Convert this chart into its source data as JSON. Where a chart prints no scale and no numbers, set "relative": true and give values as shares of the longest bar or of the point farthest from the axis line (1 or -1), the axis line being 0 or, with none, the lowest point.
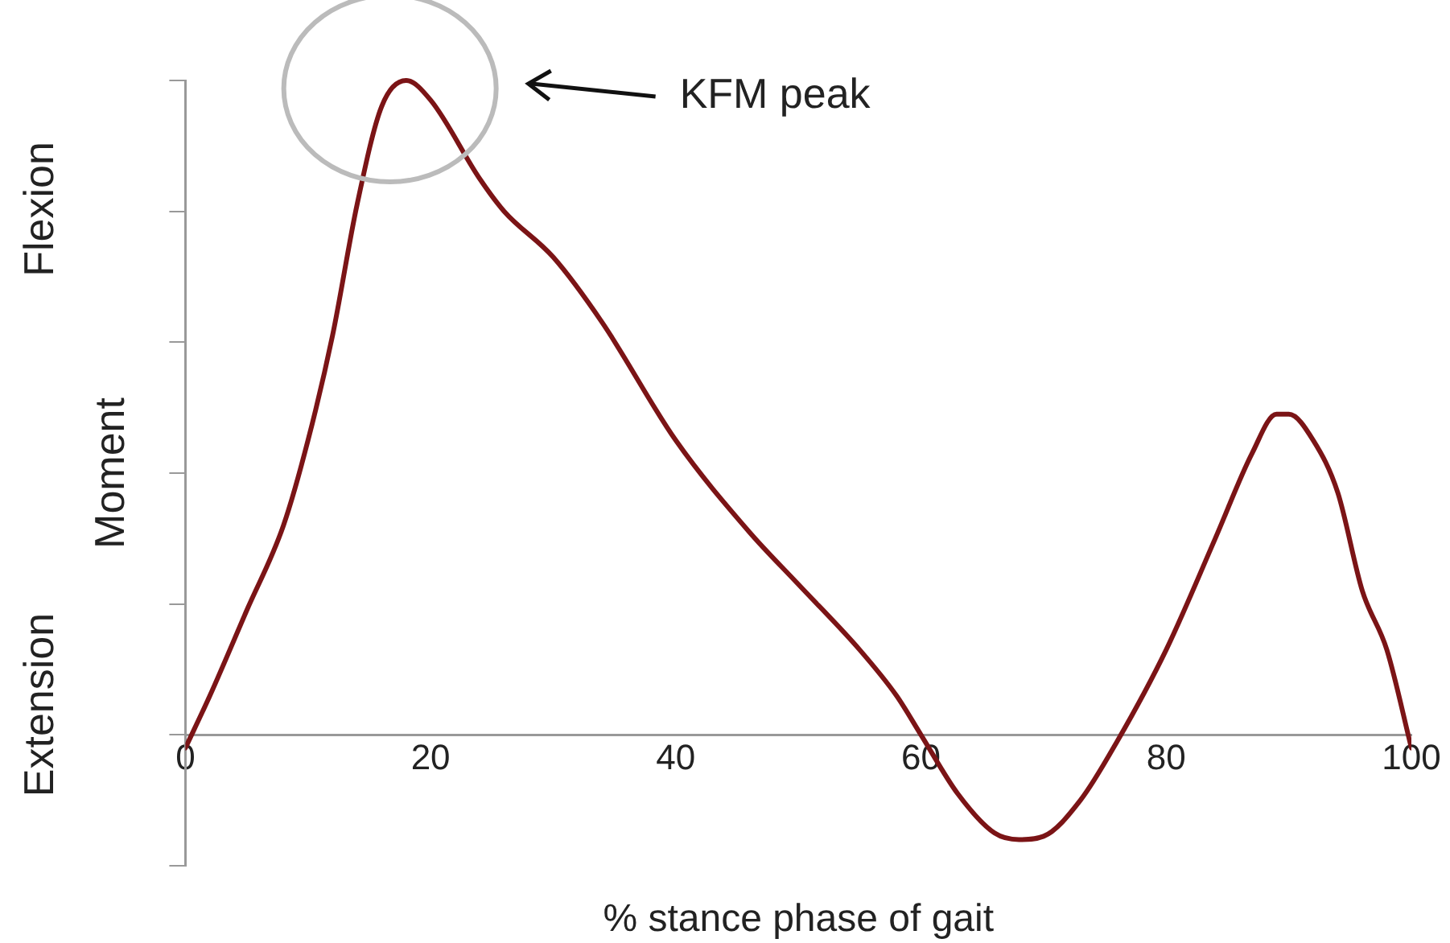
{
  "chart_data": {
    "type": "line",
    "relative": true,
    "xlabel": "% stance phase of gait",
    "ylabel": "Moment",
    "annotations": [
      "Flexion",
      "Extension",
      "KFM peak"
    ],
    "x": [
      0,
      2,
      5,
      8,
      10,
      12,
      14,
      16,
      18,
      20,
      24,
      26,
      30,
      34,
      40,
      46,
      50,
      55,
      58,
      60,
      63,
      66,
      68,
      70,
      73,
      76,
      80,
      84,
      87,
      89,
      90,
      92,
      94,
      96,
      98,
      100
    ],
    "xlim": [
      0,
      100
    ],
    "xticks": [
      0,
      20,
      40,
      60,
      80,
      100
    ],
    "grid": false,
    "legend": false,
    "marker": "none",
    "line_style": "solid",
    "series": [
      {
        "color": "#7b1416",
        "values": [
          -0.02,
          0.06,
          0.19,
          0.32,
          0.45,
          0.61,
          0.81,
          0.96,
          1,
          0.97,
          0.85,
          0.8,
          0.73,
          0.63,
          0.45,
          0.31,
          0.23,
          0.13,
          0.06,
          0,
          -0.09,
          -0.15,
          -0.16,
          -0.155,
          -0.1,
          -0.01,
          0.13,
          0.3,
          0.43,
          0.49,
          0.49,
          0.45,
          0.37,
          0.22,
          0.13,
          -0.02
        ]
      }
    ]
  }
}
